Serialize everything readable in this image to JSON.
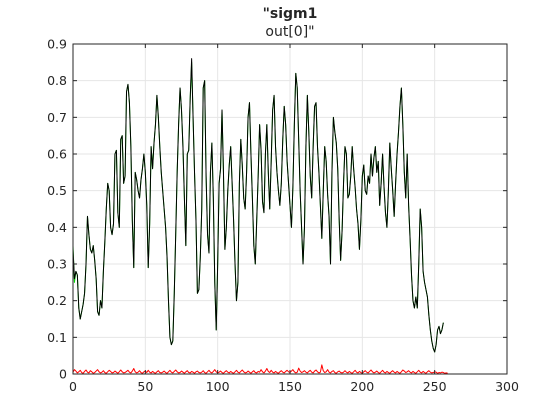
{
  "chart_data": {
    "type": "line",
    "title_line1": "\"sigm1",
    "title_line2": "out[0]\"",
    "xlabel": "",
    "ylabel": "",
    "xlim": [
      0,
      300
    ],
    "ylim": [
      0,
      0.9
    ],
    "xticks": [
      0,
      50,
      100,
      150,
      200,
      250,
      300
    ],
    "yticks": [
      0,
      0.1,
      0.2,
      0.3,
      0.4,
      0.5,
      0.6,
      0.7,
      0.8,
      0.9
    ],
    "grid": true,
    "legend": "none",
    "colors": {
      "target": "#00dd00",
      "output": "#000000",
      "error": "#ff0000"
    },
    "x_start": 0,
    "x_step": 1,
    "series": [
      {
        "values": [
          0.35,
          0.25,
          0.28,
          0.27,
          0.18,
          0.15,
          0.17,
          0.19,
          0.22,
          0.3,
          0.43,
          0.38,
          0.34,
          0.33,
          0.35,
          0.31,
          0.26,
          0.17,
          0.16,
          0.2,
          0.18,
          0.28,
          0.36,
          0.45,
          0.52,
          0.5,
          0.4,
          0.38,
          0.41,
          0.6,
          0.61,
          0.44,
          0.4,
          0.64,
          0.65,
          0.52,
          0.54,
          0.77,
          0.79,
          0.74,
          0.62,
          0.42,
          0.29,
          0.55,
          0.53,
          0.5,
          0.48,
          0.53,
          0.56,
          0.6,
          0.55,
          0.46,
          0.29,
          0.41,
          0.62,
          0.56,
          0.63,
          0.68,
          0.76,
          0.7,
          0.62,
          0.55,
          0.5,
          0.45,
          0.4,
          0.32,
          0.2,
          0.1,
          0.08,
          0.09,
          0.22,
          0.38,
          0.55,
          0.68,
          0.78,
          0.72,
          0.62,
          0.48,
          0.35,
          0.6,
          0.61,
          0.75,
          0.85,
          0.7,
          0.55,
          0.42,
          0.22,
          0.23,
          0.32,
          0.45,
          0.78,
          0.8,
          0.54,
          0.38,
          0.33,
          0.55,
          0.63,
          0.48,
          0.25,
          0.12,
          0.3,
          0.52,
          0.56,
          0.72,
          0.55,
          0.34,
          0.4,
          0.5,
          0.57,
          0.62,
          0.52,
          0.42,
          0.3,
          0.2,
          0.25,
          0.52,
          0.64,
          0.57,
          0.48,
          0.45,
          0.55,
          0.7,
          0.74,
          0.6,
          0.48,
          0.35,
          0.3,
          0.42,
          0.54,
          0.68,
          0.61,
          0.47,
          0.44,
          0.6,
          0.68,
          0.55,
          0.45,
          0.58,
          0.72,
          0.76,
          0.62,
          0.55,
          0.5,
          0.46,
          0.52,
          0.64,
          0.73,
          0.68,
          0.58,
          0.52,
          0.46,
          0.4,
          0.51,
          0.68,
          0.82,
          0.78,
          0.64,
          0.5,
          0.4,
          0.3,
          0.4,
          0.62,
          0.76,
          0.66,
          0.54,
          0.48,
          0.62,
          0.73,
          0.74,
          0.62,
          0.55,
          0.46,
          0.37,
          0.5,
          0.62,
          0.58,
          0.49,
          0.43,
          0.3,
          0.55,
          0.7,
          0.66,
          0.63,
          0.56,
          0.42,
          0.31,
          0.39,
          0.52,
          0.62,
          0.6,
          0.48,
          0.49,
          0.54,
          0.62,
          0.56,
          0.51,
          0.45,
          0.41,
          0.34,
          0.42,
          0.54,
          0.57,
          0.5,
          0.49,
          0.54,
          0.52,
          0.6,
          0.54,
          0.59,
          0.62,
          0.55,
          0.58,
          0.46,
          0.52,
          0.6,
          0.51,
          0.44,
          0.4,
          0.5,
          0.63,
          0.56,
          0.5,
          0.43,
          0.52,
          0.6,
          0.66,
          0.73,
          0.78,
          0.68,
          0.55,
          0.48,
          0.6,
          0.46,
          0.37,
          0.27,
          0.2,
          0.18,
          0.21,
          0.18,
          0.3,
          0.45,
          0.4,
          0.28,
          0.25,
          0.23,
          0.21,
          0.16,
          0.12,
          0.09,
          0.07,
          0.06,
          0.08,
          0.12,
          0.13,
          0.11,
          0.12,
          0.14
        ]
      },
      {
        "values": [
          0.34,
          0.26,
          0.28,
          0.27,
          0.18,
          0.15,
          0.17,
          0.19,
          0.22,
          0.3,
          0.43,
          0.38,
          0.34,
          0.33,
          0.35,
          0.31,
          0.26,
          0.17,
          0.16,
          0.2,
          0.18,
          0.28,
          0.36,
          0.45,
          0.52,
          0.5,
          0.4,
          0.38,
          0.41,
          0.6,
          0.61,
          0.44,
          0.4,
          0.64,
          0.65,
          0.52,
          0.54,
          0.77,
          0.79,
          0.74,
          0.62,
          0.42,
          0.29,
          0.55,
          0.53,
          0.5,
          0.48,
          0.53,
          0.56,
          0.6,
          0.55,
          0.46,
          0.29,
          0.41,
          0.62,
          0.56,
          0.63,
          0.68,
          0.76,
          0.7,
          0.62,
          0.55,
          0.5,
          0.45,
          0.4,
          0.32,
          0.2,
          0.1,
          0.08,
          0.09,
          0.22,
          0.38,
          0.55,
          0.68,
          0.78,
          0.72,
          0.62,
          0.48,
          0.35,
          0.6,
          0.61,
          0.75,
          0.86,
          0.7,
          0.55,
          0.42,
          0.22,
          0.23,
          0.32,
          0.45,
          0.78,
          0.8,
          0.54,
          0.38,
          0.33,
          0.55,
          0.63,
          0.48,
          0.25,
          0.12,
          0.3,
          0.52,
          0.56,
          0.72,
          0.55,
          0.34,
          0.4,
          0.5,
          0.57,
          0.62,
          0.52,
          0.42,
          0.3,
          0.2,
          0.25,
          0.52,
          0.64,
          0.57,
          0.48,
          0.45,
          0.55,
          0.7,
          0.74,
          0.6,
          0.48,
          0.35,
          0.3,
          0.42,
          0.54,
          0.68,
          0.61,
          0.47,
          0.44,
          0.6,
          0.68,
          0.55,
          0.45,
          0.58,
          0.72,
          0.76,
          0.62,
          0.55,
          0.5,
          0.46,
          0.52,
          0.64,
          0.73,
          0.68,
          0.58,
          0.52,
          0.46,
          0.4,
          0.51,
          0.68,
          0.82,
          0.78,
          0.64,
          0.5,
          0.4,
          0.3,
          0.4,
          0.62,
          0.76,
          0.66,
          0.54,
          0.48,
          0.62,
          0.73,
          0.74,
          0.62,
          0.55,
          0.46,
          0.37,
          0.5,
          0.62,
          0.58,
          0.49,
          0.43,
          0.3,
          0.55,
          0.7,
          0.66,
          0.63,
          0.56,
          0.42,
          0.31,
          0.39,
          0.52,
          0.62,
          0.6,
          0.48,
          0.49,
          0.54,
          0.62,
          0.56,
          0.51,
          0.45,
          0.41,
          0.34,
          0.42,
          0.54,
          0.57,
          0.5,
          0.49,
          0.54,
          0.52,
          0.6,
          0.54,
          0.59,
          0.62,
          0.55,
          0.58,
          0.46,
          0.52,
          0.6,
          0.51,
          0.44,
          0.4,
          0.5,
          0.63,
          0.56,
          0.5,
          0.43,
          0.52,
          0.6,
          0.66,
          0.73,
          0.78,
          0.68,
          0.55,
          0.48,
          0.6,
          0.46,
          0.37,
          0.27,
          0.2,
          0.18,
          0.21,
          0.18,
          0.3,
          0.45,
          0.4,
          0.28,
          0.25,
          0.23,
          0.21,
          0.16,
          0.12,
          0.09,
          0.07,
          0.06,
          0.08,
          0.12,
          0.13,
          0.11,
          0.12,
          0.14
        ]
      },
      {
        "values": [
          0.005,
          0.012,
          0.008,
          0.003,
          0.006,
          0.01,
          0.004,
          0.002,
          0.007,
          0.011,
          0.005,
          0.003,
          0.009,
          0.006,
          0.002,
          0.004,
          0.008,
          0.012,
          0.006,
          0.003,
          0.005,
          0.009,
          0.004,
          0.002,
          0.006,
          0.01,
          0.007,
          0.003,
          0.004,
          0.008,
          0.005,
          0.002,
          0.006,
          0.011,
          0.006,
          0.003,
          0.004,
          0.007,
          0.01,
          0.005,
          0.003,
          0.008,
          0.015,
          0.006,
          0.003,
          0.005,
          0.009,
          0.004,
          0.002,
          0.006,
          0.008,
          0.004,
          0.01,
          0.005,
          0.003,
          0.007,
          0.004,
          0.002,
          0.006,
          0.009,
          0.004,
          0.003,
          0.005,
          0.008,
          0.004,
          0.002,
          0.006,
          0.01,
          0.005,
          0.003,
          0.007,
          0.011,
          0.006,
          0.003,
          0.004,
          0.008,
          0.005,
          0.002,
          0.006,
          0.009,
          0.004,
          0.003,
          0.007,
          0.005,
          0.002,
          0.006,
          0.008,
          0.004,
          0.003,
          0.005,
          0.009,
          0.004,
          0.002,
          0.006,
          0.01,
          0.005,
          0.003,
          0.007,
          0.012,
          0.006,
          0.003,
          0.005,
          0.008,
          0.004,
          0.002,
          0.006,
          0.009,
          0.005,
          0.003,
          0.007,
          0.004,
          0.002,
          0.006,
          0.01,
          0.005,
          0.003,
          0.007,
          0.011,
          0.006,
          0.003,
          0.004,
          0.008,
          0.005,
          0.002,
          0.006,
          0.009,
          0.004,
          0.003,
          0.007,
          0.005,
          0.012,
          0.006,
          0.003,
          0.008,
          0.015,
          0.007,
          0.004,
          0.01,
          0.005,
          0.003,
          0.007,
          0.004,
          0.002,
          0.006,
          0.009,
          0.005,
          0.003,
          0.007,
          0.01,
          0.006,
          0.004,
          0.008,
          0.012,
          0.006,
          0.003,
          0.005,
          0.016,
          0.008,
          0.004,
          0.006,
          0.009,
          0.005,
          0.003,
          0.007,
          0.01,
          0.005,
          0.003,
          0.008,
          0.011,
          0.006,
          0.003,
          0.005,
          0.025,
          0.009,
          0.004,
          0.006,
          0.012,
          0.005,
          0.003,
          0.007,
          0.009,
          0.004,
          0.002,
          0.006,
          0.008,
          0.004,
          0.003,
          0.005,
          0.009,
          0.005,
          0.003,
          0.007,
          0.004,
          0.002,
          0.006,
          0.01,
          0.005,
          0.003,
          0.007,
          0.004,
          0.002,
          0.006,
          0.009,
          0.005,
          0.003,
          0.007,
          0.011,
          0.006,
          0.003,
          0.005,
          0.008,
          0.004,
          0.002,
          0.006,
          0.01,
          0.005,
          0.003,
          0.007,
          0.004,
          0.002,
          0.006,
          0.009,
          0.005,
          0.003,
          0.007,
          0.004,
          0.002,
          0.006,
          0.011,
          0.008,
          0.004,
          0.006,
          0.009,
          0.005,
          0.003,
          0.007,
          0.004,
          0.002,
          0.006,
          0.01,
          0.005,
          0.003,
          0.007,
          0.004,
          0.002,
          0.006,
          0.009,
          0.005,
          0.003,
          0.004,
          0.006,
          0.005,
          0.002,
          0.004,
          0.003,
          0.005,
          0.004,
          0.002,
          0.003,
          0.002
        ]
      }
    ]
  }
}
